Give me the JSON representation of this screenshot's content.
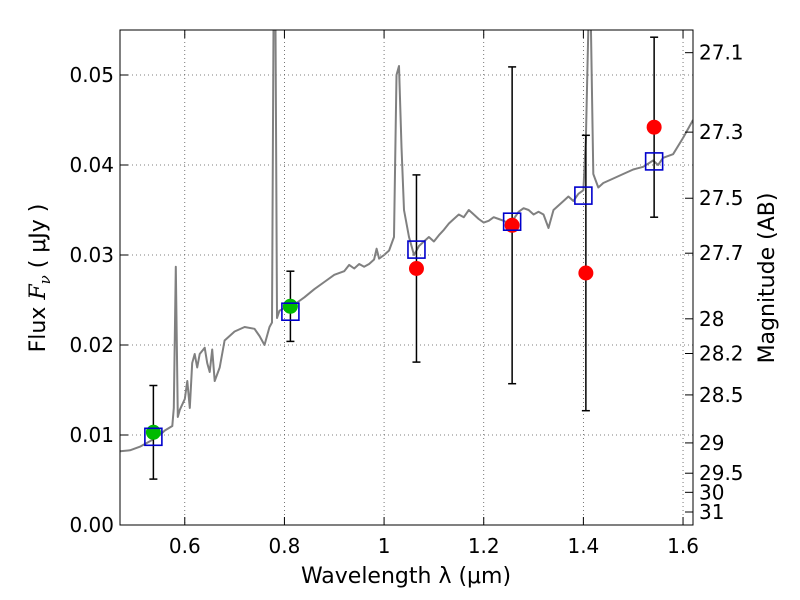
{
  "chart_data": {
    "type": "scatter",
    "xlabel": "Wavelength  λ (μm)",
    "ylabel_prefix": "Flux  ",
    "ylabel_symbol": "F",
    "ylabel_subscript": "ν",
    "ylabel_suffix": "  ( μJy )",
    "y2label": "Magnitude (AB)",
    "xlim": [
      0.47,
      1.62
    ],
    "ylim": [
      0.0,
      0.055
    ],
    "grid": true,
    "x_ticks": [
      {
        "value": 0.6,
        "label": "0.6"
      },
      {
        "value": 0.8,
        "label": "0.8"
      },
      {
        "value": 1.0,
        "label": "1"
      },
      {
        "value": 1.2,
        "label": "1.2"
      },
      {
        "value": 1.4,
        "label": "1.4"
      },
      {
        "value": 1.6,
        "label": "1.6"
      }
    ],
    "y_ticks": [
      {
        "value": 0.0,
        "label": "0.00"
      },
      {
        "value": 0.01,
        "label": "0.01"
      },
      {
        "value": 0.02,
        "label": "0.02"
      },
      {
        "value": 0.03,
        "label": "0.03"
      },
      {
        "value": 0.04,
        "label": "0.04"
      },
      {
        "value": 0.05,
        "label": "0.05"
      }
    ],
    "mag_ticks": [
      {
        "value": 27.1,
        "label": "27.1"
      },
      {
        "value": 27.3,
        "label": "27.3"
      },
      {
        "value": 27.5,
        "label": "27.5"
      },
      {
        "value": 27.7,
        "label": "27.7"
      },
      {
        "value": 28.0,
        "label": "28"
      },
      {
        "value": 28.2,
        "label": "28.2"
      },
      {
        "value": 28.5,
        "label": "28.5"
      },
      {
        "value": 29.0,
        "label": "29"
      },
      {
        "value": 29.5,
        "label": "29.5"
      },
      {
        "value": 30.0,
        "label": "30"
      },
      {
        "value": 31.0,
        "label": "31"
      }
    ],
    "colors": {
      "spectrum": "#808080",
      "observed": "#ff0000",
      "green": "#00bb00",
      "model": "#0000cc",
      "errorbar": "#000000",
      "grid": "#555555"
    },
    "spectrum": [
      [
        0.47,
        0.0082
      ],
      [
        0.49,
        0.0083
      ],
      [
        0.51,
        0.0087
      ],
      [
        0.53,
        0.0093
      ],
      [
        0.55,
        0.01
      ],
      [
        0.56,
        0.0105
      ],
      [
        0.575,
        0.011
      ],
      [
        0.578,
        0.013
      ],
      [
        0.582,
        0.0287
      ],
      [
        0.586,
        0.012
      ],
      [
        0.59,
        0.0128
      ],
      [
        0.6,
        0.014
      ],
      [
        0.605,
        0.016
      ],
      [
        0.61,
        0.013
      ],
      [
        0.615,
        0.018
      ],
      [
        0.62,
        0.019
      ],
      [
        0.625,
        0.0175
      ],
      [
        0.63,
        0.019
      ],
      [
        0.64,
        0.0197
      ],
      [
        0.645,
        0.018
      ],
      [
        0.65,
        0.017
      ],
      [
        0.655,
        0.0195
      ],
      [
        0.66,
        0.016
      ],
      [
        0.67,
        0.0175
      ],
      [
        0.68,
        0.0205
      ],
      [
        0.69,
        0.021
      ],
      [
        0.7,
        0.0215
      ],
      [
        0.72,
        0.022
      ],
      [
        0.74,
        0.0218
      ],
      [
        0.75,
        0.021
      ],
      [
        0.76,
        0.02
      ],
      [
        0.77,
        0.022
      ],
      [
        0.775,
        0.0225
      ],
      [
        0.778,
        0.0555
      ],
      [
        0.782,
        0.0555
      ],
      [
        0.785,
        0.023
      ],
      [
        0.79,
        0.0238
      ],
      [
        0.8,
        0.0241
      ],
      [
        0.82,
        0.0245
      ],
      [
        0.84,
        0.0253
      ],
      [
        0.86,
        0.0262
      ],
      [
        0.88,
        0.027
      ],
      [
        0.9,
        0.0278
      ],
      [
        0.92,
        0.0282
      ],
      [
        0.93,
        0.0289
      ],
      [
        0.94,
        0.0285
      ],
      [
        0.95,
        0.029
      ],
      [
        0.96,
        0.0287
      ],
      [
        0.97,
        0.029
      ],
      [
        0.98,
        0.0295
      ],
      [
        0.985,
        0.0307
      ],
      [
        0.99,
        0.0296
      ],
      [
        1.0,
        0.03
      ],
      [
        1.01,
        0.0305
      ],
      [
        1.02,
        0.032
      ],
      [
        1.025,
        0.05
      ],
      [
        1.03,
        0.051
      ],
      [
        1.035,
        0.042
      ],
      [
        1.04,
        0.035
      ],
      [
        1.05,
        0.032
      ],
      [
        1.06,
        0.03
      ],
      [
        1.07,
        0.031
      ],
      [
        1.08,
        0.0315
      ],
      [
        1.09,
        0.032
      ],
      [
        1.1,
        0.0315
      ],
      [
        1.11,
        0.0322
      ],
      [
        1.12,
        0.0328
      ],
      [
        1.13,
        0.0335
      ],
      [
        1.14,
        0.034
      ],
      [
        1.15,
        0.0345
      ],
      [
        1.16,
        0.0342
      ],
      [
        1.17,
        0.035
      ],
      [
        1.18,
        0.0345
      ],
      [
        1.19,
        0.034
      ],
      [
        1.2,
        0.0336
      ],
      [
        1.21,
        0.0338
      ],
      [
        1.22,
        0.0342
      ],
      [
        1.23,
        0.034
      ],
      [
        1.24,
        0.0338
      ],
      [
        1.25,
        0.0335
      ],
      [
        1.26,
        0.034
      ],
      [
        1.27,
        0.0348
      ],
      [
        1.28,
        0.0352
      ],
      [
        1.29,
        0.035
      ],
      [
        1.3,
        0.0345
      ],
      [
        1.31,
        0.0348
      ],
      [
        1.32,
        0.0345
      ],
      [
        1.33,
        0.033
      ],
      [
        1.34,
        0.035
      ],
      [
        1.35,
        0.0355
      ],
      [
        1.36,
        0.036
      ],
      [
        1.37,
        0.0365
      ],
      [
        1.38,
        0.036
      ],
      [
        1.39,
        0.0368
      ],
      [
        1.4,
        0.0372
      ],
      [
        1.405,
        0.043
      ],
      [
        1.41,
        0.0555
      ],
      [
        1.415,
        0.0555
      ],
      [
        1.42,
        0.039
      ],
      [
        1.43,
        0.0375
      ],
      [
        1.44,
        0.038
      ],
      [
        1.46,
        0.0385
      ],
      [
        1.48,
        0.039
      ],
      [
        1.5,
        0.0395
      ],
      [
        1.52,
        0.0398
      ],
      [
        1.54,
        0.0405
      ],
      [
        1.55,
        0.04
      ],
      [
        1.56,
        0.0408
      ],
      [
        1.58,
        0.0412
      ],
      [
        1.6,
        0.043
      ],
      [
        1.62,
        0.045
      ]
    ],
    "observed_points": [
      {
        "x": 0.537,
        "y": 0.0103,
        "err": 0.0052,
        "color": "green"
      },
      {
        "x": 0.812,
        "y": 0.0243,
        "err": 0.0039,
        "color": "green"
      },
      {
        "x": 1.065,
        "y": 0.0285,
        "err": 0.0104,
        "color": "red"
      },
      {
        "x": 1.257,
        "y": 0.0333,
        "err": 0.0176,
        "color": "red"
      },
      {
        "x": 1.405,
        "y": 0.028,
        "err": 0.0153,
        "color": "red"
      },
      {
        "x": 1.542,
        "y": 0.0442,
        "err": 0.01,
        "color": "red"
      }
    ],
    "model_points": [
      {
        "x": 0.537,
        "y": 0.0098
      },
      {
        "x": 0.812,
        "y": 0.0237
      },
      {
        "x": 1.065,
        "y": 0.0306
      },
      {
        "x": 1.257,
        "y": 0.0337
      },
      {
        "x": 1.4,
        "y": 0.0366
      },
      {
        "x": 1.542,
        "y": 0.0404
      }
    ]
  }
}
